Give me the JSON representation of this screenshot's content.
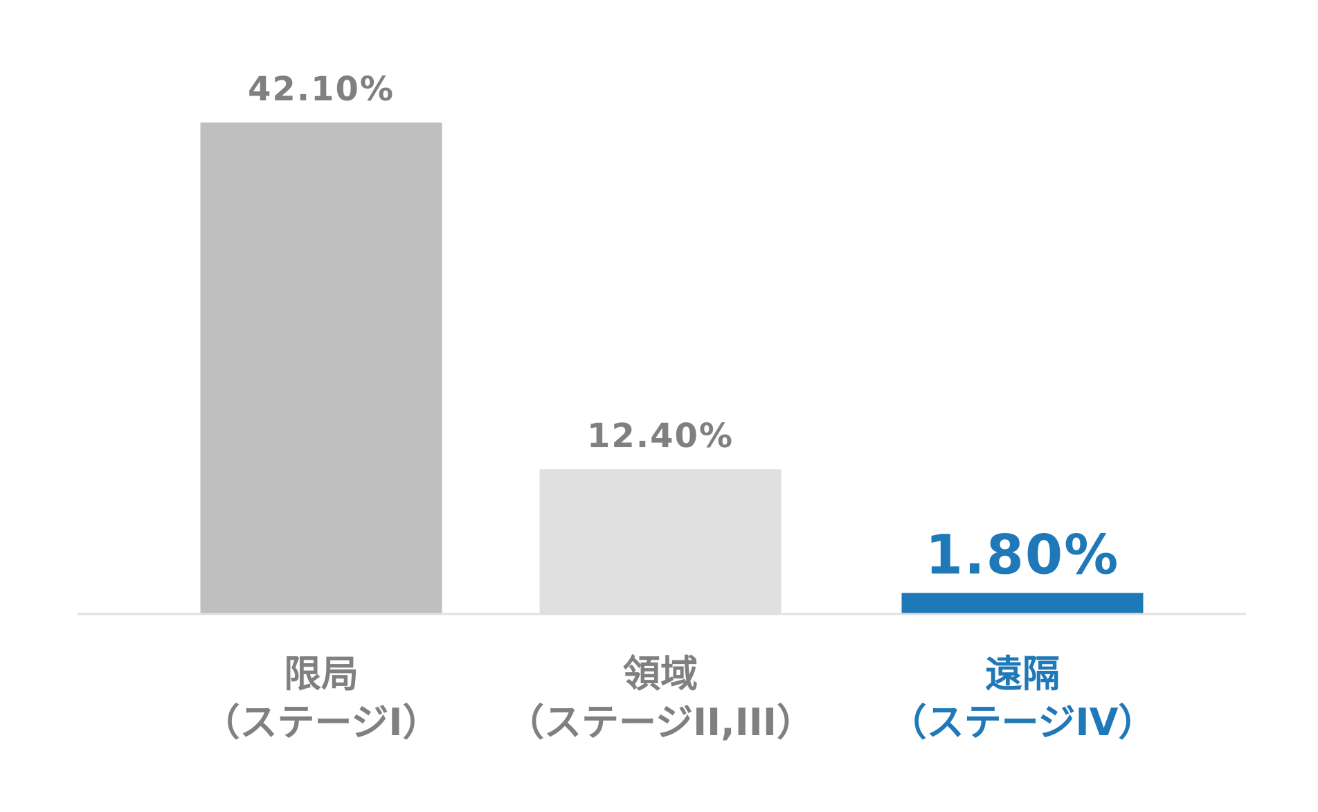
{
  "chart_data": {
    "type": "bar",
    "categories": [
      [
        "限局",
        "（ステージI）"
      ],
      [
        "領域",
        "（ステージII,III）"
      ],
      [
        "遠隔",
        "（ステージIV）"
      ]
    ],
    "values": [
      42.1,
      12.4,
      1.8
    ],
    "value_labels": [
      "42.10%",
      "12.40%",
      "1.80%"
    ],
    "colors": [
      "#bfbfbf",
      "#e0e0e0",
      "#1f78b8"
    ],
    "label_colors": [
      "#808080",
      "#808080",
      "#1f78b8"
    ],
    "highlight": 2,
    "ylim": [
      0,
      45
    ]
  }
}
